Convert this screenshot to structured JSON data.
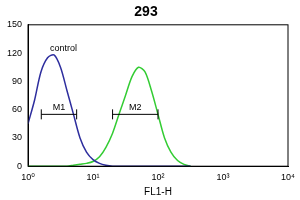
{
  "chart_data": {
    "type": "line",
    "title": "293",
    "x_label": "FL1-H",
    "log": "x",
    "x": [
      1,
      1.26,
      1.58,
      2,
      2.51,
      3.16,
      3.98,
      5.01,
      6.31,
      7.94,
      10,
      12.6,
      15.8,
      20,
      25.1,
      31.6,
      39.8,
      50.1,
      63.1,
      79.4,
      100,
      126,
      158,
      200,
      251,
      316
    ],
    "series": [
      {
        "name": "control",
        "color": "#2e2e9e",
        "values": [
          45,
          70,
          100,
          115,
          118,
          105,
          80,
          55,
          30,
          15,
          7,
          3,
          1,
          0,
          0,
          0,
          0,
          0,
          0,
          0,
          0,
          0,
          0,
          0,
          0,
          0
        ]
      },
      {
        "color": "#33cc33",
        "values": [
          0,
          0,
          0,
          0,
          0,
          0,
          0,
          1,
          2,
          3,
          5,
          10,
          20,
          35,
          55,
          75,
          95,
          105,
          100,
          80,
          55,
          30,
          15,
          6,
          2,
          0
        ]
      }
    ],
    "gates": [
      {
        "label": "M1",
        "x": [
          1.6,
          5.6
        ],
        "y": 55
      },
      {
        "label": "M2",
        "x": [
          20,
          100
        ],
        "y": 55
      }
    ],
    "xlim": [
      1,
      10000
    ],
    "xticks": [
      {
        "value": 1,
        "label": "10⁰"
      },
      {
        "value": 10,
        "label": "10¹"
      },
      {
        "value": 100,
        "label": "10²"
      },
      {
        "value": 1000,
        "label": "10³"
      },
      {
        "value": 10000,
        "label": "10⁴"
      }
    ],
    "ylim": [
      0,
      150
    ],
    "yticks": [
      0,
      30,
      60,
      90,
      120,
      150
    ],
    "grid": false
  }
}
